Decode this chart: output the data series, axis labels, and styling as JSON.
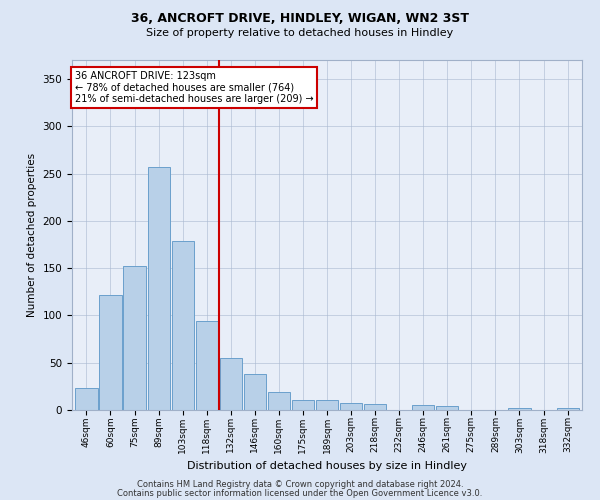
{
  "title_line1": "36, ANCROFT DRIVE, HINDLEY, WIGAN, WN2 3ST",
  "title_line2": "Size of property relative to detached houses in Hindley",
  "xlabel": "Distribution of detached houses by size in Hindley",
  "ylabel": "Number of detached properties",
  "categories": [
    "46sqm",
    "60sqm",
    "75sqm",
    "89sqm",
    "103sqm",
    "118sqm",
    "132sqm",
    "146sqm",
    "160sqm",
    "175sqm",
    "189sqm",
    "203sqm",
    "218sqm",
    "232sqm",
    "246sqm",
    "261sqm",
    "275sqm",
    "289sqm",
    "303sqm",
    "318sqm",
    "332sqm"
  ],
  "values": [
    23,
    122,
    152,
    257,
    179,
    94,
    55,
    38,
    19,
    11,
    11,
    7,
    6,
    0,
    5,
    4,
    0,
    0,
    2,
    0,
    2
  ],
  "bar_color": "#b8d0e8",
  "bar_edge_color": "#6aa0cc",
  "marker_line_color": "#cc0000",
  "annotation_line1": "36 ANCROFT DRIVE: 123sqm",
  "annotation_line2": "← 78% of detached houses are smaller (764)",
  "annotation_line3": "21% of semi-detached houses are larger (209) →",
  "ylim": [
    0,
    370
  ],
  "yticks": [
    0,
    50,
    100,
    150,
    200,
    250,
    300,
    350
  ],
  "bg_color": "#dce6f5",
  "plot_bg_color": "#e8eef8",
  "footer_line1": "Contains HM Land Registry data © Crown copyright and database right 2024.",
  "footer_line2": "Contains public sector information licensed under the Open Government Licence v3.0."
}
